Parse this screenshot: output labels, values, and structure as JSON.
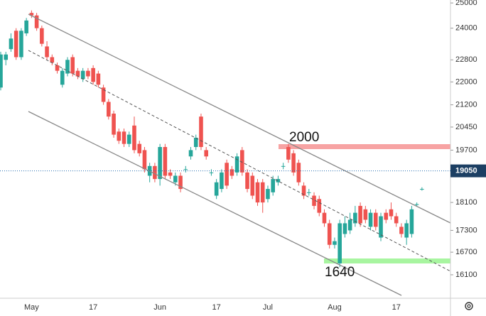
{
  "chart_data": {
    "type": "candlestick",
    "categories": [
      null,
      null,
      null,
      null,
      null,
      null,
      "May",
      null,
      null,
      null,
      null,
      null,
      null,
      null,
      null,
      null,
      null,
      null,
      "17",
      null,
      null,
      null,
      null,
      null,
      null,
      null,
      null,
      null,
      null,
      null,
      null,
      "Jun",
      null,
      null,
      null,
      null,
      null,
      null,
      null,
      null,
      null,
      null,
      "17",
      null,
      null,
      null,
      null,
      null,
      null,
      null,
      null,
      null,
      "Jul",
      null,
      null,
      null,
      null,
      null,
      null,
      null,
      null,
      null,
      null,
      null,
      null,
      "Aug",
      null,
      null,
      null,
      null,
      null,
      null,
      null,
      null,
      null,
      null,
      null,
      "17",
      null,
      null,
      null,
      null,
      null
    ],
    "open": [
      21800,
      22800,
      23200,
      23900,
      22900,
      23800,
      24600,
      24500,
      24000,
      23300,
      22900,
      22600,
      21900,
      22300,
      22900,
      22400,
      22100,
      22400,
      22500,
      22300,
      21800,
      21300,
      20900,
      20300,
      20300,
      19900,
      20500,
      19900,
      19700,
      18900,
      19200,
      18800,
      19800,
      19000,
      18700,
      18900,
      19100,
      19500,
      19800,
      20800,
      19700,
      19000,
      18300,
      18500,
      19300,
      19100,
      19000,
      19700,
      19000,
      18900,
      18700,
      18700,
      18200,
      18400,
      18700,
      19200,
      19800,
      19600,
      19300,
      18600,
      18400,
      18300,
      18200,
      17800,
      17500,
      16900,
      16400,
      17200,
      17300,
      17500,
      18000,
      17900,
      17400,
      17800,
      17100,
      17800,
      17900,
      17700,
      17400,
      17100,
      17200,
      18050,
      18500
    ],
    "high": [
      23100,
      23100,
      23800,
      24000,
      24000,
      24400,
      24700,
      24600,
      24100,
      23500,
      23000,
      22700,
      22500,
      22900,
      23000,
      22500,
      22500,
      22500,
      22600,
      22400,
      21900,
      21400,
      21000,
      20400,
      20400,
      20300,
      20800,
      20000,
      19800,
      19300,
      19300,
      19900,
      19900,
      19100,
      19000,
      19000,
      19200,
      19800,
      20200,
      20900,
      19800,
      19100,
      18800,
      19100,
      19400,
      19200,
      19600,
      19800,
      19100,
      19000,
      18800,
      18800,
      18600,
      18900,
      18900,
      19300,
      19900,
      19700,
      19400,
      18700,
      18500,
      18400,
      18300,
      17900,
      17600,
      17100,
      17600,
      17700,
      17800,
      18000,
      18100,
      18000,
      17900,
      17900,
      17800,
      17900,
      18100,
      17800,
      17500,
      17600,
      18000,
      18100,
      18550
    ],
    "low": [
      21700,
      22600,
      23100,
      22800,
      22800,
      23700,
      24400,
      23900,
      23300,
      22800,
      22600,
      22300,
      21800,
      22200,
      22200,
      22100,
      22000,
      22100,
      21900,
      21800,
      21200,
      20700,
      20100,
      19900,
      19800,
      19800,
      19600,
      19500,
      19000,
      18700,
      18700,
      18600,
      18800,
      18800,
      18600,
      18400,
      19000,
      19400,
      19700,
      19700,
      19400,
      18900,
      18200,
      18400,
      18500,
      18800,
      18900,
      18900,
      18400,
      18200,
      18000,
      17800,
      18100,
      18300,
      18600,
      19100,
      19300,
      18900,
      18600,
      18200,
      18300,
      17900,
      17700,
      17400,
      16800,
      16800,
      16300,
      17100,
      17200,
      17400,
      17400,
      17500,
      17300,
      17300,
      17000,
      17500,
      17600,
      17400,
      17100,
      16900,
      17100,
      18000,
      18450
    ],
    "close": [
      23000,
      23000,
      23600,
      22900,
      23900,
      24300,
      24500,
      24000,
      23400,
      22900,
      22700,
      22400,
      22400,
      22800,
      22300,
      22200,
      22400,
      22200,
      22000,
      21900,
      21300,
      20800,
      20200,
      20000,
      19900,
      20200,
      19700,
      19600,
      19100,
      19200,
      18800,
      19800,
      18900,
      18900,
      18900,
      18500,
      19100,
      19700,
      20100,
      19800,
      19500,
      19000,
      18700,
      19000,
      18600,
      18900,
      19500,
      19000,
      18500,
      18300,
      18100,
      18100,
      18500,
      18800,
      18800,
      19200,
      19400,
      19000,
      18700,
      18300,
      18400,
      18000,
      17800,
      17500,
      16900,
      17000,
      17500,
      17500,
      17600,
      17800,
      17500,
      17600,
      17800,
      17400,
      17700,
      17600,
      17700,
      17500,
      17200,
      17500,
      17900,
      18050,
      18500
    ],
    "up_color": "#26a69a",
    "down_color": "#ef5350",
    "ylim": [
      15500,
      25120
    ],
    "log_scale": true,
    "yticks": [
      25000,
      24000,
      22800,
      22000,
      21200,
      20450,
      19700,
      18100,
      17300,
      16700,
      16100
    ],
    "current_price": 19050,
    "annotations": [
      "2000",
      "1640"
    ]
  }
}
